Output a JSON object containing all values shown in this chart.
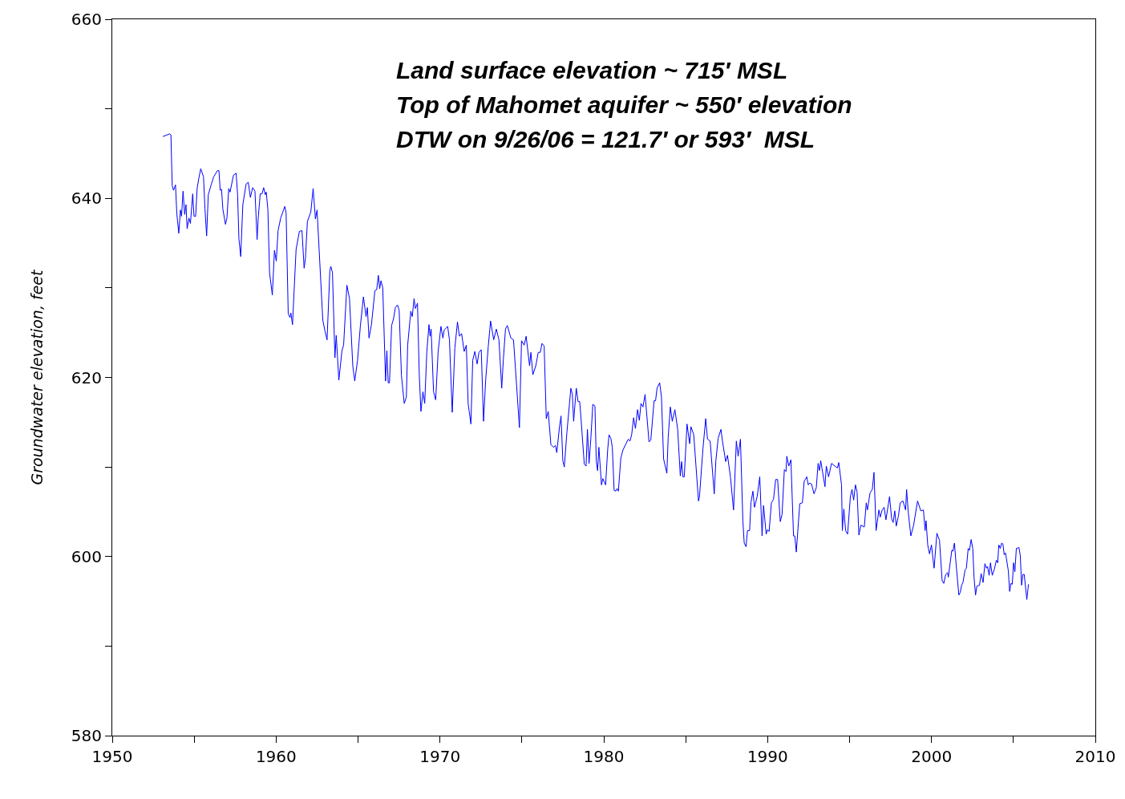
{
  "chart_data": {
    "type": "line",
    "xlabel": null,
    "ylabel": "Groundwater elevation, feet",
    "annotations": [
      "Land surface elevation ~ 715′ MSL",
      "Top of Mahomet aquifer ~ 550′ elevation",
      "DTW on 9/26/06 = 121.7′ or 593′  MSL"
    ],
    "x": [
      1953.09,
      1953.5,
      1953.58,
      1953.66,
      1953.74,
      1953.86,
      1953.94,
      1954.06,
      1954.16,
      1954.23,
      1954.32,
      1954.42,
      1954.5,
      1954.57,
      1954.68,
      1954.77,
      1954.91,
      1954.99,
      1955.09,
      1955.18,
      1955.29,
      1955.4,
      1955.57,
      1955.66,
      1955.76,
      1955.86,
      1956.05,
      1956.19,
      1956.42,
      1956.51,
      1956.59,
      1956.67,
      1956.75,
      1956.91,
      1957.0,
      1957.11,
      1957.19,
      1957.4,
      1957.56,
      1957.65,
      1957.73,
      1957.84,
      1957.97,
      1958.17,
      1958.3,
      1958.43,
      1958.57,
      1958.71,
      1958.84,
      1958.91,
      1959.03,
      1959.14,
      1959.24,
      1959.34,
      1959.4,
      1959.5,
      1959.6,
      1959.77,
      1959.9,
      1960.01,
      1960.12,
      1960.28,
      1960.53,
      1960.61,
      1960.74,
      1960.85,
      1960.9,
      1961.0,
      1961.22,
      1961.42,
      1961.58,
      1961.71,
      1961.79,
      1961.91,
      1962.12,
      1962.26,
      1962.4,
      1962.5,
      1962.85,
      1962.98,
      1963.11,
      1963.28,
      1963.34,
      1963.44,
      1963.59,
      1963.67,
      1963.83,
      1964.02,
      1964.12,
      1964.32,
      1964.48,
      1964.68,
      1964.8,
      1964.97,
      1965.14,
      1965.33,
      1965.49,
      1965.57,
      1965.67,
      1965.82,
      1966.03,
      1966.14,
      1966.24,
      1966.32,
      1966.4,
      1966.51,
      1966.68,
      1966.76,
      1966.84,
      1966.92,
      1967.05,
      1967.16,
      1967.28,
      1967.41,
      1967.51,
      1967.65,
      1967.82,
      1967.95,
      1968.03,
      1968.22,
      1968.31,
      1968.42,
      1968.5,
      1968.63,
      1968.74,
      1968.84,
      1968.96,
      1969.07,
      1969.2,
      1969.33,
      1969.4,
      1969.46,
      1969.61,
      1969.74,
      1969.89,
      1970.06,
      1970.18,
      1970.26,
      1970.47,
      1970.58,
      1970.75,
      1970.91,
      1971.07,
      1971.19,
      1971.32,
      1971.48,
      1971.61,
      1971.72,
      1971.89,
      1972.0,
      1972.13,
      1972.27,
      1972.38,
      1972.52,
      1972.66,
      1972.79,
      1972.95,
      1973.09,
      1973.28,
      1973.44,
      1973.6,
      1973.77,
      1973.87,
      1974.0,
      1974.11,
      1974.33,
      1974.49,
      1974.66,
      1974.85,
      1974.98,
      1975.14,
      1975.26,
      1975.47,
      1975.55,
      1975.67,
      1975.85,
      1976.0,
      1976.12,
      1976.23,
      1976.36,
      1976.49,
      1976.61,
      1976.77,
      1976.93,
      1977.05,
      1977.13,
      1977.29,
      1977.39,
      1977.5,
      1977.59,
      1977.75,
      1977.99,
      1978.08,
      1978.16,
      1978.32,
      1978.43,
      1978.53,
      1978.61,
      1978.81,
      1978.92,
      1979.0,
      1979.1,
      1979.21,
      1979.33,
      1979.46,
      1979.54,
      1979.62,
      1979.7,
      1979.86,
      1979.94,
      1980.11,
      1980.24,
      1980.32,
      1980.43,
      1980.52,
      1980.63,
      1980.73,
      1980.81,
      1980.89,
      1981.04,
      1981.17,
      1981.33,
      1981.49,
      1981.6,
      1981.7,
      1981.82,
      1981.93,
      1982.06,
      1982.17,
      1982.27,
      1982.39,
      1982.52,
      1982.76,
      1982.87,
      1983.07,
      1983.16,
      1983.25,
      1983.41,
      1983.52,
      1983.65,
      1983.85,
      1983.93,
      1984.06,
      1984.18,
      1984.34,
      1984.51,
      1984.67,
      1984.75,
      1984.83,
      1984.91,
      1985.08,
      1985.24,
      1985.32,
      1985.49,
      1985.78,
      1985.84,
      1986.05,
      1986.22,
      1986.33,
      1986.49,
      1986.74,
      1986.84,
      1986.98,
      1987.15,
      1987.25,
      1987.44,
      1987.55,
      1987.73,
      1987.92,
      1988.09,
      1988.2,
      1988.34,
      1988.49,
      1988.57,
      1988.68,
      1988.77,
      1988.9,
      1988.98,
      1989.1,
      1989.2,
      1989.36,
      1989.52,
      1989.66,
      1989.75,
      1989.91,
      1989.99,
      1990.09,
      1990.23,
      1990.36,
      1990.49,
      1990.61,
      1990.77,
      1990.88,
      1991.02,
      1991.12,
      1991.17,
      1991.29,
      1991.42,
      1991.58,
      1991.66,
      1991.75,
      1991.96,
      1992.12,
      1992.23,
      1992.39,
      1992.48,
      1992.56,
      1992.68,
      1992.83,
      1992.97,
      1993.08,
      1993.16,
      1993.24,
      1993.5,
      1993.58,
      1993.72,
      1993.9,
      1994.18,
      1994.26,
      1994.34,
      1994.51,
      1994.56,
      1994.65,
      1994.76,
      1994.88,
      1995.05,
      1995.15,
      1995.25,
      1995.36,
      1995.46,
      1995.57,
      1995.69,
      1995.9,
      1996.02,
      1996.09,
      1996.25,
      1996.39,
      1996.49,
      1996.62,
      1996.79,
      1996.87,
      1996.99,
      1997.11,
      1997.22,
      1997.44,
      1997.57,
      1997.66,
      1997.76,
      1997.85,
      1997.98,
      1998.09,
      1998.26,
      1998.42,
      1998.48,
      1998.58,
      1998.74,
      1998.91,
      1999.15,
      1999.35,
      1999.51,
      1999.61,
      1999.67,
      1999.77,
      1999.88,
      2000.0,
      2000.1,
      2000.16,
      2000.33,
      2000.49,
      2000.65,
      2000.75,
      2000.87,
      2000.98,
      2001.03,
      2001.24,
      2001.31,
      2001.4,
      2001.51,
      2001.67,
      2001.76,
      2001.84,
      2001.92,
      2002.05,
      2002.13,
      2002.24,
      2002.32,
      2002.42,
      2002.52,
      2002.6,
      2002.69,
      2002.77,
      2002.93,
      2003.03,
      2003.15,
      2003.26,
      2003.36,
      2003.42,
      2003.52,
      2003.6,
      2003.71,
      2003.84,
      2003.96,
      2004.04,
      2004.11,
      2004.2,
      2004.28,
      2004.36,
      2004.44,
      2004.52,
      2004.69,
      2004.77,
      2004.85,
      2004.93,
      2005.01,
      2005.09,
      2005.18,
      2005.34,
      2005.42,
      2005.5,
      2005.58,
      2005.66,
      2005.82,
      2005.92
    ],
    "series": [
      {
        "color": "#0000ff",
        "values": [
          646.9,
          647.2,
          647.1,
          641.4,
          640.9,
          641.5,
          638.3,
          636.1,
          638.7,
          638.0,
          640.8,
          638.2,
          639.3,
          636.6,
          637.8,
          637.2,
          640.5,
          638.0,
          638.0,
          641.1,
          642.3,
          643.3,
          642.4,
          638.8,
          635.8,
          640.4,
          641.6,
          642.4,
          643.1,
          643.1,
          640.9,
          641.0,
          638.8,
          637.1,
          637.8,
          641.1,
          640.7,
          642.6,
          642.8,
          640.4,
          635.5,
          633.5,
          639.3,
          641.6,
          641.8,
          640.1,
          641.2,
          640.8,
          635.4,
          637.8,
          640.5,
          640.5,
          641.2,
          640.4,
          640.7,
          638.7,
          631.7,
          629.2,
          634.2,
          633.0,
          636.4,
          637.8,
          639.1,
          638.4,
          627.1,
          626.7,
          627.2,
          625.9,
          634.3,
          636.3,
          636.4,
          632.2,
          633.3,
          637.4,
          638.5,
          641.1,
          637.7,
          638.7,
          626.4,
          625.2,
          624.2,
          631.9,
          632.4,
          631.7,
          622.2,
          624.7,
          619.7,
          623.0,
          623.6,
          630.3,
          628.8,
          621.3,
          619.6,
          621.9,
          625.7,
          629.0,
          626.8,
          627.8,
          624.4,
          625.9,
          629.7,
          629.8,
          631.4,
          629.9,
          630.8,
          630.0,
          619.6,
          623.0,
          619.4,
          619.4,
          625.8,
          626.5,
          627.8,
          628.1,
          627.5,
          620.2,
          617.1,
          617.8,
          623.6,
          627.4,
          626.8,
          628.8,
          627.7,
          628.3,
          620.2,
          616.2,
          618.4,
          617.1,
          622.9,
          625.9,
          624.6,
          625.4,
          618.4,
          617.5,
          622.9,
          625.7,
          624.4,
          625.3,
          625.7,
          624.2,
          616.1,
          623.3,
          626.2,
          624.6,
          624.9,
          622.9,
          623.6,
          617.1,
          614.8,
          621.9,
          622.9,
          621.5,
          622.8,
          623.1,
          615.1,
          619.7,
          623.5,
          626.3,
          624.2,
          625.4,
          624.2,
          618.8,
          622.0,
          625.4,
          625.8,
          624.4,
          624.2,
          619.6,
          614.4,
          624.1,
          623.6,
          624.6,
          621.3,
          622.8,
          620.3,
          621.3,
          622.8,
          622.8,
          623.8,
          623.5,
          615.4,
          616.2,
          612.5,
          612.2,
          612.4,
          611.6,
          614.4,
          615.7,
          610.7,
          610.0,
          613.9,
          618.8,
          618.1,
          615.1,
          618.8,
          617.3,
          617.3,
          615.4,
          610.3,
          610.1,
          614.2,
          610.4,
          613.2,
          617.0,
          616.8,
          610.7,
          609.6,
          612.2,
          608.0,
          608.7,
          608.0,
          612.0,
          613.6,
          613.2,
          612.2,
          607.4,
          607.3,
          607.6,
          607.3,
          611.0,
          611.9,
          612.5,
          613.1,
          612.9,
          613.6,
          615.5,
          614.3,
          616.4,
          615.2,
          617.1,
          616.7,
          618.1,
          612.8,
          613.0,
          617.4,
          617.4,
          618.8,
          619.4,
          617.8,
          610.9,
          609.3,
          613.3,
          616.7,
          615.1,
          616.4,
          614.2,
          609.0,
          610.6,
          608.9,
          608.9,
          614.8,
          612.6,
          614.5,
          613.6,
          606.2,
          606.7,
          612.0,
          615.4,
          613.1,
          612.9,
          607.0,
          610.7,
          613.2,
          614.2,
          612.8,
          610.6,
          611.3,
          608.9,
          605.2,
          612.9,
          611.2,
          613.1,
          603.9,
          601.5,
          601.1,
          602.9,
          602.9,
          606.0,
          607.3,
          605.5,
          606.7,
          608.9,
          602.3,
          605.7,
          602.5,
          603.0,
          602.8,
          606.0,
          606.4,
          608.6,
          608.6,
          603.9,
          604.7,
          609.7,
          609.5,
          611.2,
          610.1,
          610.8,
          602.3,
          602.3,
          600.5,
          605.9,
          606.0,
          608.4,
          608.9,
          608.0,
          608.2,
          608.1,
          607.0,
          607.7,
          610.4,
          609.6,
          610.7,
          607.8,
          610.1,
          608.9,
          610.4,
          610.0,
          609.9,
          610.5,
          608.0,
          602.9,
          605.3,
          602.9,
          602.5,
          606.7,
          607.5,
          606.3,
          608.0,
          607.2,
          602.4,
          603.5,
          603.3,
          606.0,
          605.2,
          607.1,
          607.5,
          609.4,
          602.9,
          605.2,
          604.4,
          605.2,
          605.5,
          604.1,
          606.7,
          604.2,
          603.8,
          605.1,
          603.4,
          604.5,
          606.0,
          606.2,
          605.2,
          607.5,
          605.0,
          602.3,
          603.5,
          606.2,
          605.1,
          605.2,
          602.9,
          604.0,
          601.3,
          600.3,
          601.3,
          599.6,
          598.7,
          602.6,
          601.8,
          597.3,
          597.0,
          598.0,
          598.2,
          597.7,
          600.7,
          600.6,
          601.5,
          599.0,
          595.7,
          596.0,
          596.8,
          597.1,
          598.5,
          598.7,
          600.9,
          600.7,
          601.9,
          600.9,
          597.6,
          595.7,
          596.7,
          596.8,
          598.1,
          597.1,
          599.2,
          598.7,
          598.9,
          597.9,
          599.3,
          597.9,
          598.6,
          599.6,
          599.3,
          601.3,
          600.9,
          601.5,
          601.4,
          600.2,
          600.4,
          598.4,
          596.1,
          597.0,
          596.9,
          599.3,
          598.3,
          600.9,
          601.0,
          600.1,
          596.8,
          598.0,
          598.0,
          595.2,
          596.9
        ]
      }
    ],
    "xlim": [
      1950,
      2010
    ],
    "xticks": [
      1950,
      {
        "value": 1955,
        "label": null
      },
      1960,
      {
        "value": 1965,
        "label": null
      },
      1970,
      {
        "value": 1975,
        "label": null
      },
      1980,
      {
        "value": 1985,
        "label": null
      },
      1990,
      {
        "value": 1995,
        "label": null
      },
      2000,
      {
        "value": 2005,
        "label": null
      },
      2010
    ],
    "ylim": [
      580,
      660
    ],
    "yticks": [
      580,
      {
        "value": 590,
        "label": null
      },
      600,
      {
        "value": 610,
        "label": null
      },
      620,
      {
        "value": 630,
        "label": null
      },
      640,
      {
        "value": 650,
        "label": null
      },
      660
    ],
    "marker": "none",
    "line_style": "solid"
  }
}
